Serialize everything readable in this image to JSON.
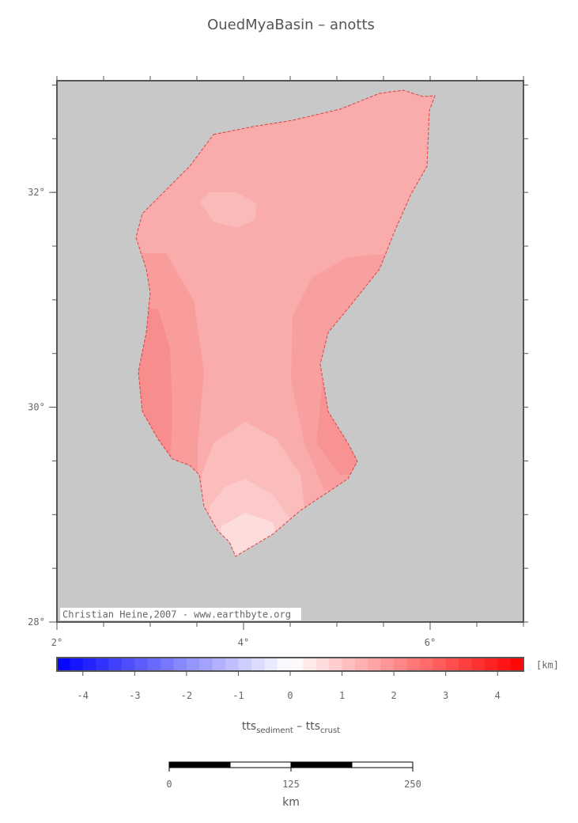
{
  "title": "OuedMyaBasin – anotts",
  "map": {
    "xlim": [
      2,
      7
    ],
    "ylim": [
      28,
      33.04
    ],
    "xticks": [
      {
        "value": 2,
        "label": "2°"
      },
      {
        "value": 4,
        "label": "4°"
      },
      {
        "value": 6,
        "label": "6°"
      }
    ],
    "yticks": [
      {
        "value": 28,
        "label": "28°"
      },
      {
        "value": 30,
        "label": "30°"
      },
      {
        "value": 32,
        "label": "32°"
      }
    ],
    "credit": "Christian Heine,2007 - www.earthbyte.org"
  },
  "colorbar": {
    "xlim": [
      -4.5,
      4.5
    ],
    "ticks": [
      -4,
      -3,
      -2,
      -1,
      0,
      1,
      2,
      3,
      4
    ],
    "unit": "[km]",
    "label": {
      "main1": "tts",
      "sub1": "sediment",
      "sep": " – ",
      "main2": "tts",
      "sub2": "crust"
    }
  },
  "scale_bar": {
    "xlim": [
      0,
      250
    ],
    "ticks": [
      0,
      125,
      250
    ],
    "unit": "km"
  }
}
